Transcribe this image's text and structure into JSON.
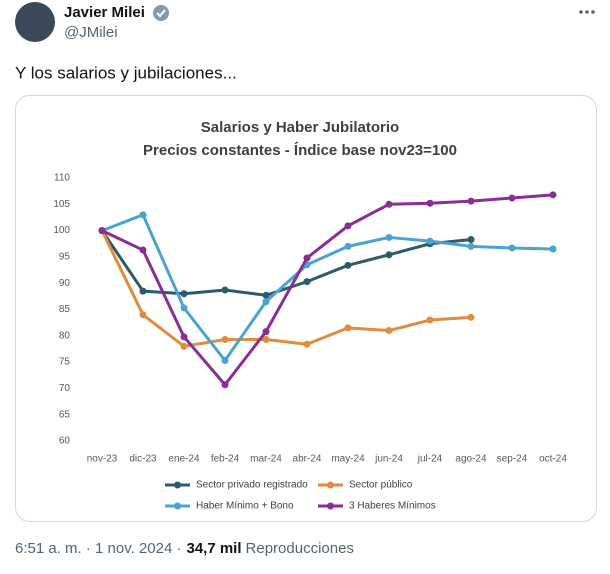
{
  "tweet": {
    "name": "Javier Milei",
    "handle": "@JMilei",
    "text": "Y los salarios y jubilaciones...",
    "timestamp": "6:51 a. m. · 1 nov. 2024 ·",
    "views": "34,7 mil",
    "views_label": "Reproducciones"
  },
  "chart_data": {
    "type": "line",
    "title": "Salarios y Haber Jubilatorio",
    "subtitle": "Precios constantes - Índice base nov23=100",
    "categories": [
      "nov-23",
      "dic-23",
      "ene-24",
      "feb-24",
      "mar-24",
      "abr-24",
      "may-24",
      "jun-24",
      "jul-24",
      "ago-24",
      "sep-24",
      "oct-24"
    ],
    "ylim": [
      60,
      110
    ],
    "yticks": [
      60,
      65,
      70,
      75,
      80,
      85,
      90,
      95,
      100,
      105,
      110
    ],
    "grid": false,
    "series": [
      {
        "name": "Sector privado registrado",
        "color": "#2d5b6b",
        "values": [
          100,
          88.5,
          88,
          88.7,
          87.7,
          90.3,
          93.4,
          95.4,
          97.5,
          98.3,
          null,
          null
        ]
      },
      {
        "name": "Sector público",
        "color": "#e08b3e",
        "values": [
          100,
          84,
          78,
          79.3,
          79.3,
          78.4,
          81.5,
          81,
          83,
          83.5,
          null,
          null
        ]
      },
      {
        "name": "Haber Mínimo + Bono",
        "color": "#4aa3d3",
        "values": [
          100,
          103,
          85.3,
          75.3,
          86.5,
          93.5,
          97,
          98.7,
          98,
          97,
          96.7,
          96.5
        ]
      },
      {
        "name": "3 Haberes Mínimos",
        "color": "#8a2e96",
        "values": [
          100,
          96.3,
          79.8,
          70.7,
          80.8,
          94.8,
          100.9,
          105,
          105.2,
          105.6,
          106.2,
          106.8
        ]
      }
    ]
  }
}
